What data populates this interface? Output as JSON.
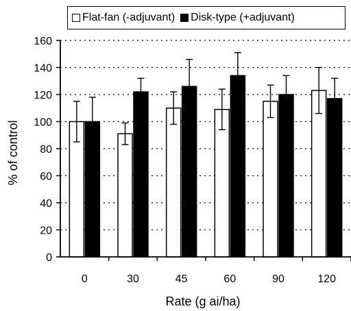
{
  "chart_data": {
    "type": "bar",
    "title": "",
    "xlabel": "Rate (g ai/ha)",
    "ylabel": "% of control",
    "categories": [
      "0",
      "30",
      "45",
      "60",
      "90",
      "120"
    ],
    "ylim": [
      0,
      160
    ],
    "yticks": [
      0,
      20,
      40,
      60,
      80,
      100,
      120,
      140,
      160
    ],
    "grid": "horizontal dotted",
    "legend_placement": "top",
    "series": [
      {
        "name": "Flat-fan (-adjuvant)",
        "fill": "#ffffff",
        "values": [
          100,
          91,
          110,
          109,
          115,
          123
        ],
        "error": [
          15,
          8,
          12,
          15,
          12,
          17
        ]
      },
      {
        "name": "Disk-type (+adjuvant)",
        "fill": "#000000",
        "values": [
          100,
          122,
          126,
          134,
          120,
          117
        ],
        "error": [
          18,
          10,
          20,
          17,
          14,
          15
        ]
      }
    ]
  }
}
